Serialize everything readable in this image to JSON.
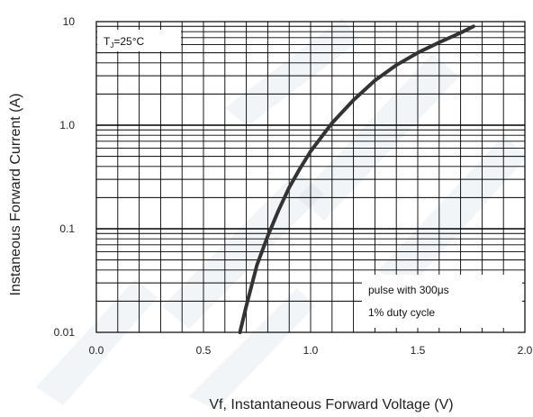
{
  "chart_data": {
    "type": "line",
    "xlabel": "Vf, Instantaneous Forward  Voltage (V)",
    "ylabel": "Instaneous Forward Current (A)",
    "x_scale": "linear",
    "y_scale": "log",
    "xlim": [
      0.0,
      2.0
    ],
    "ylim": [
      0.01,
      10
    ],
    "x_ticks": [
      "0.0",
      "0.5",
      "1.0",
      "1.5",
      "2.0"
    ],
    "y_ticks": [
      "0.01",
      "0.1",
      "1.0",
      "10"
    ],
    "grid": true,
    "series": [
      {
        "x": [
          0.67,
          0.7,
          0.75,
          0.8,
          0.85,
          0.9,
          0.95,
          1.0,
          1.1,
          1.2,
          1.3,
          1.4,
          1.5,
          1.6,
          1.7,
          1.76
        ],
        "y": [
          0.01,
          0.018,
          0.045,
          0.085,
          0.15,
          0.25,
          0.38,
          0.56,
          1.05,
          1.75,
          2.7,
          3.8,
          5.0,
          6.3,
          7.8,
          9.0
        ],
        "color": "#333333"
      }
    ],
    "annotations": {
      "temperature": {
        "prefix": "T",
        "subscript": "J",
        "suffix": "=25°C"
      },
      "pulse_line1": "pulse with 300μs",
      "pulse_line2": "1% duty cycle"
    }
  }
}
